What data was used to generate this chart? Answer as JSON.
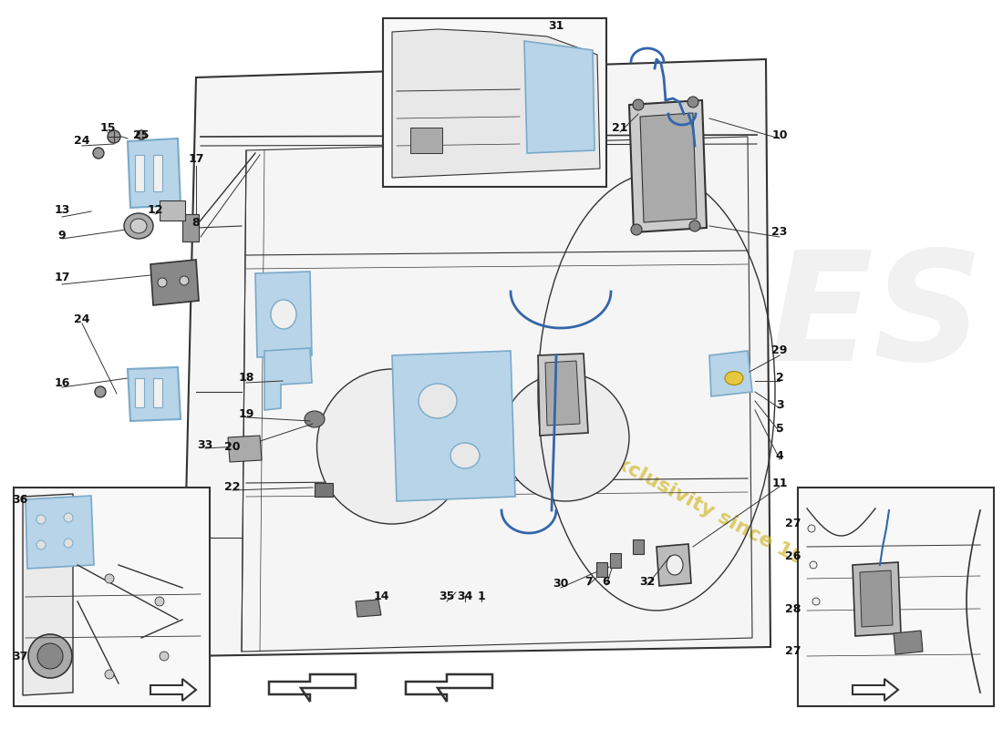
{
  "bg_color": "#ffffff",
  "line_color": "#333333",
  "blue_fill": "#b8d4e8",
  "blue_stroke": "#7aaac8",
  "light_blue": "#d0e4f0",
  "watermark_color": "#d8c84a",
  "ipes_color": "#e0e0e0",
  "label_fontsize": 9,
  "label_color": "#111111"
}
